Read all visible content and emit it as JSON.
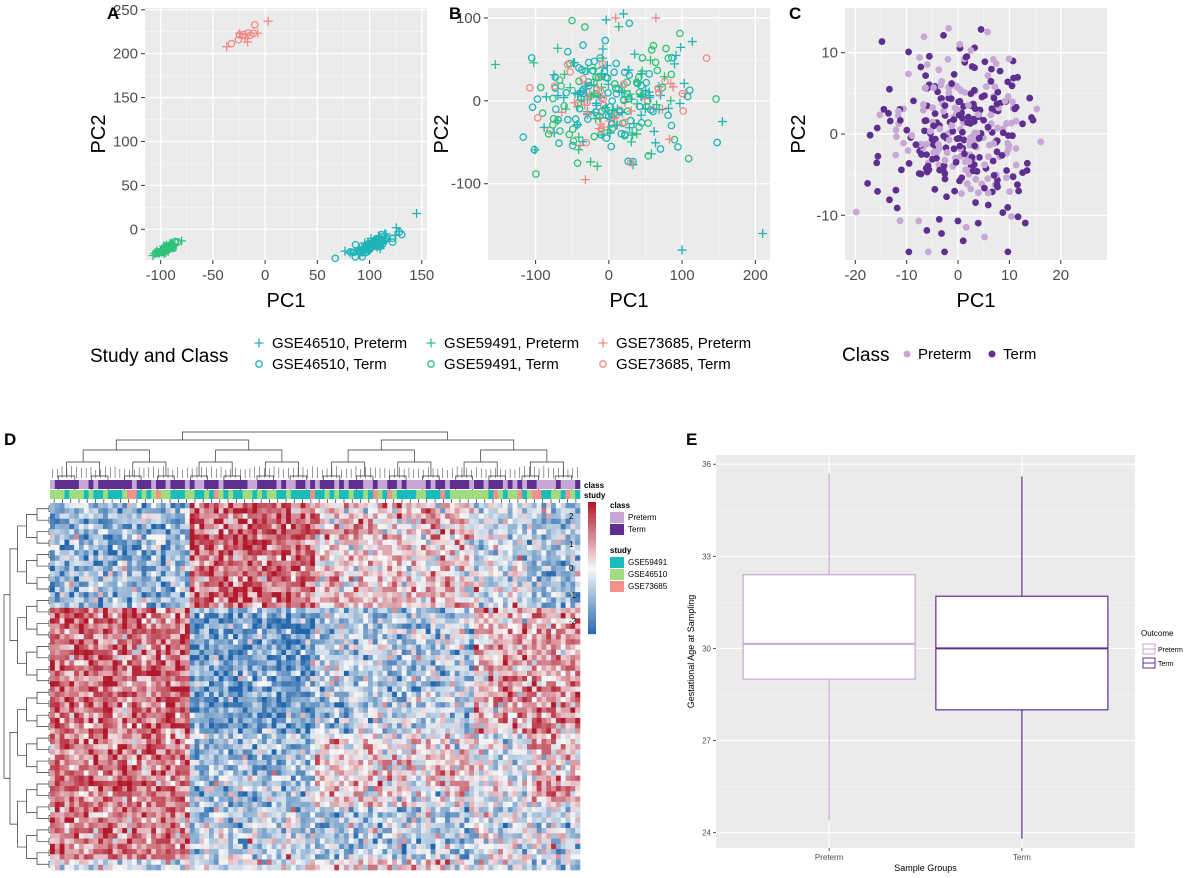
{
  "panels": {
    "A": "A",
    "B": "B",
    "C": "C",
    "D": "D",
    "E": "E"
  },
  "colors": {
    "gse46510": "#1fb3b8",
    "gse59491": "#2ec27a",
    "gse73685": "#f08a86",
    "preterm": "#c6a7d6",
    "term": "#5e2f90",
    "panel_bg": "#ebebeb",
    "hm_high": "#b2182b",
    "hm_mid": "#f7f7f7",
    "hm_low": "#2166ac",
    "study_gse59491": "#19bcbc",
    "study_gse46510": "#9fdc7f",
    "study_gse73685": "#f3908c"
  },
  "chart_data": [
    {
      "id": "A",
      "type": "scatter",
      "title": "",
      "xlabel": "PC1",
      "ylabel": "PC2",
      "xlim": [
        -115,
        155
      ],
      "ylim": [
        -35,
        252
      ],
      "xticks": [
        -100,
        -50,
        0,
        50,
        100,
        150
      ],
      "yticks": [
        0,
        50,
        100,
        150,
        200,
        250
      ],
      "clusters": [
        {
          "series": "GSE59491",
          "center": [
            -95,
            -22
          ],
          "spread": [
            6,
            4
          ],
          "n": 60
        },
        {
          "series": "GSE46510",
          "center": [
            102,
            -18
          ],
          "spread": [
            10,
            7
          ],
          "n": 110
        },
        {
          "series": "GSE73685",
          "center": [
            -18,
            220
          ],
          "spread": [
            8,
            6
          ],
          "n": 14
        }
      ]
    },
    {
      "id": "B",
      "type": "scatter",
      "title": "",
      "xlabel": "PC1",
      "ylabel": "PC2",
      "xlim": [
        -165,
        220
      ],
      "ylim": [
        -192,
        112
      ],
      "xticks": [
        -100,
        0,
        100,
        200
      ],
      "yticks": [
        -100,
        0,
        100
      ],
      "outliers": [
        [
          210,
          -160
        ],
        [
          100,
          -180
        ],
        [
          20,
          105
        ],
        [
          155,
          -25
        ]
      ]
    },
    {
      "id": "C",
      "type": "scatter",
      "title": "",
      "xlabel": "PC1",
      "ylabel": "PC2",
      "xlim": [
        -22,
        29
      ],
      "ylim": [
        -15.5,
        15.5
      ],
      "xticks": [
        -20,
        -10,
        0,
        10,
        20
      ],
      "yticks": [
        -10,
        0,
        10
      ]
    },
    {
      "id": "D",
      "type": "heatmap",
      "annotation_tracks": [
        "class",
        "study"
      ],
      "legend": {
        "color_ticks": [
          "2",
          "1",
          "0",
          "-1",
          "-2"
        ],
        "class_title": "class",
        "class_items": [
          "Preterm",
          "Term"
        ],
        "study_title": "study",
        "study_items": [
          "GSE59491",
          "GSE46510",
          "GSE73685"
        ]
      }
    },
    {
      "id": "E",
      "type": "box",
      "xlabel": "Sample Groups",
      "ylabel": "Gestational Age at Sampling",
      "ylim": [
        23.5,
        36.3
      ],
      "yticks": [
        24,
        27,
        30,
        33,
        36
      ],
      "categories": [
        "Preterm",
        "Term"
      ],
      "series": [
        {
          "name": "Preterm",
          "min": 24.4,
          "q1": 29.0,
          "median": 30.15,
          "q3": 32.4,
          "max": 35.7
        },
        {
          "name": "Term",
          "min": 23.8,
          "q1": 28.0,
          "median": 30.0,
          "q3": 31.7,
          "max": 35.6
        }
      ],
      "legend_title": "Outcome",
      "legend_items": [
        "Preterm",
        "Term"
      ]
    }
  ],
  "legend_ab": {
    "title": "Study and Class",
    "items": [
      {
        "label": "GSE46510, Preterm",
        "series": "GSE46510",
        "class": "Preterm"
      },
      {
        "label": "GSE46510, Term",
        "series": "GSE46510",
        "class": "Term"
      },
      {
        "label": "GSE59491, Preterm",
        "series": "GSE59491",
        "class": "Preterm"
      },
      {
        "label": "GSE59491, Term",
        "series": "GSE59491",
        "class": "Term"
      },
      {
        "label": "GSE73685, Preterm",
        "series": "GSE73685",
        "class": "Preterm"
      },
      {
        "label": "GSE73685, Term",
        "series": "GSE73685",
        "class": "Term"
      }
    ]
  },
  "legend_c": {
    "title": "Class",
    "items": [
      "Preterm",
      "Term"
    ]
  }
}
